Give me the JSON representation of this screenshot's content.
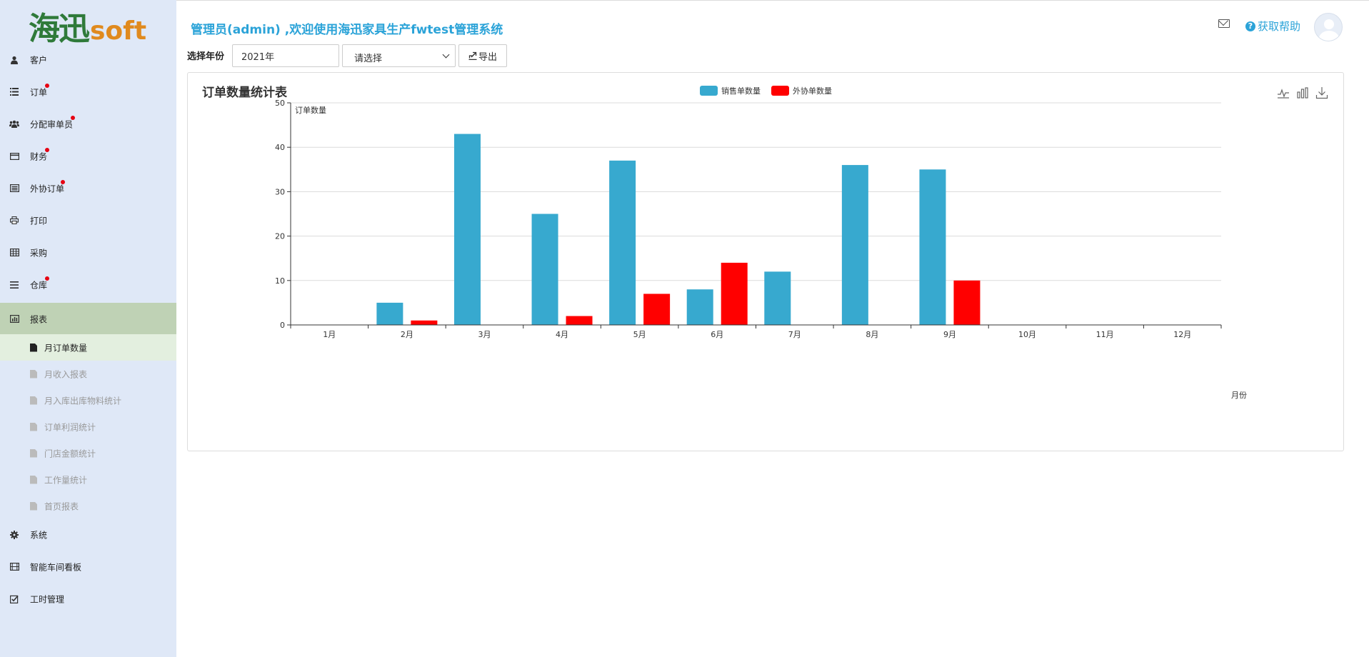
{
  "app": {
    "logo_main": "海迅",
    "logo_sub": "soft",
    "welcome": "管理员(admin) ,欢迎使用海迅家具生产fwtest管理系统",
    "help_label": "获取帮助"
  },
  "sidebar": {
    "items": [
      {
        "label": "客户",
        "icon": "user-icon",
        "dot": false
      },
      {
        "label": "订单",
        "icon": "list-icon",
        "dot": true
      },
      {
        "label": "分配审单员",
        "icon": "users-icon",
        "dot": true
      },
      {
        "label": "财务",
        "icon": "credit-card-icon",
        "dot": true
      },
      {
        "label": "外协订单",
        "icon": "list-alt-icon",
        "dot": true
      },
      {
        "label": "打印",
        "icon": "print-icon",
        "dot": false
      },
      {
        "label": "采购",
        "icon": "table-icon",
        "dot": false
      },
      {
        "label": "仓库",
        "icon": "bars-icon",
        "dot": true
      },
      {
        "label": "报表",
        "icon": "bar-chart-icon",
        "dot": false
      }
    ],
    "report_sub": [
      {
        "label": "月订单数量"
      },
      {
        "label": "月收入报表"
      },
      {
        "label": "月入库出库物料统计"
      },
      {
        "label": "订单利润统计"
      },
      {
        "label": "门店金额统计"
      },
      {
        "label": "工作量统计"
      },
      {
        "label": "首页报表"
      }
    ],
    "bottom_items": [
      {
        "label": "系统",
        "icon": "gear-icon"
      },
      {
        "label": "智能车间看板",
        "icon": "film-icon"
      },
      {
        "label": "工时管理",
        "icon": "check-square-icon"
      }
    ]
  },
  "filters": {
    "year_label": "选择年份",
    "year_value": "2021年",
    "select_value": "请选择",
    "export_label": "导出"
  },
  "colors": {
    "accent": "#2ba3d8",
    "sales": "#37a9cf",
    "outsourcing": "#ff0000",
    "active_menu": "#bfd2b5",
    "sidebar_bg": "#dfe8f7"
  },
  "chart_data": {
    "type": "bar",
    "title": "订单数量统计表",
    "ylabel": "订单数量",
    "xlabel": "月份",
    "ylim": [
      0,
      50
    ],
    "yticks": [
      0,
      10,
      20,
      30,
      40,
      50
    ],
    "categories": [
      "1月",
      "2月",
      "3月",
      "4月",
      "5月",
      "6月",
      "7月",
      "8月",
      "9月",
      "10月",
      "11月",
      "12月"
    ],
    "series": [
      {
        "name": "销售单数量",
        "color": "#37a9cf",
        "values": [
          0,
          5,
          43,
          25,
          37,
          8,
          12,
          36,
          35,
          0,
          0,
          0
        ]
      },
      {
        "name": "外协单数量",
        "color": "#ff0000",
        "values": [
          0,
          1,
          0,
          2,
          7,
          14,
          0,
          0,
          10,
          0,
          0,
          0
        ]
      }
    ],
    "legend_position": "top-center",
    "grid": true
  }
}
